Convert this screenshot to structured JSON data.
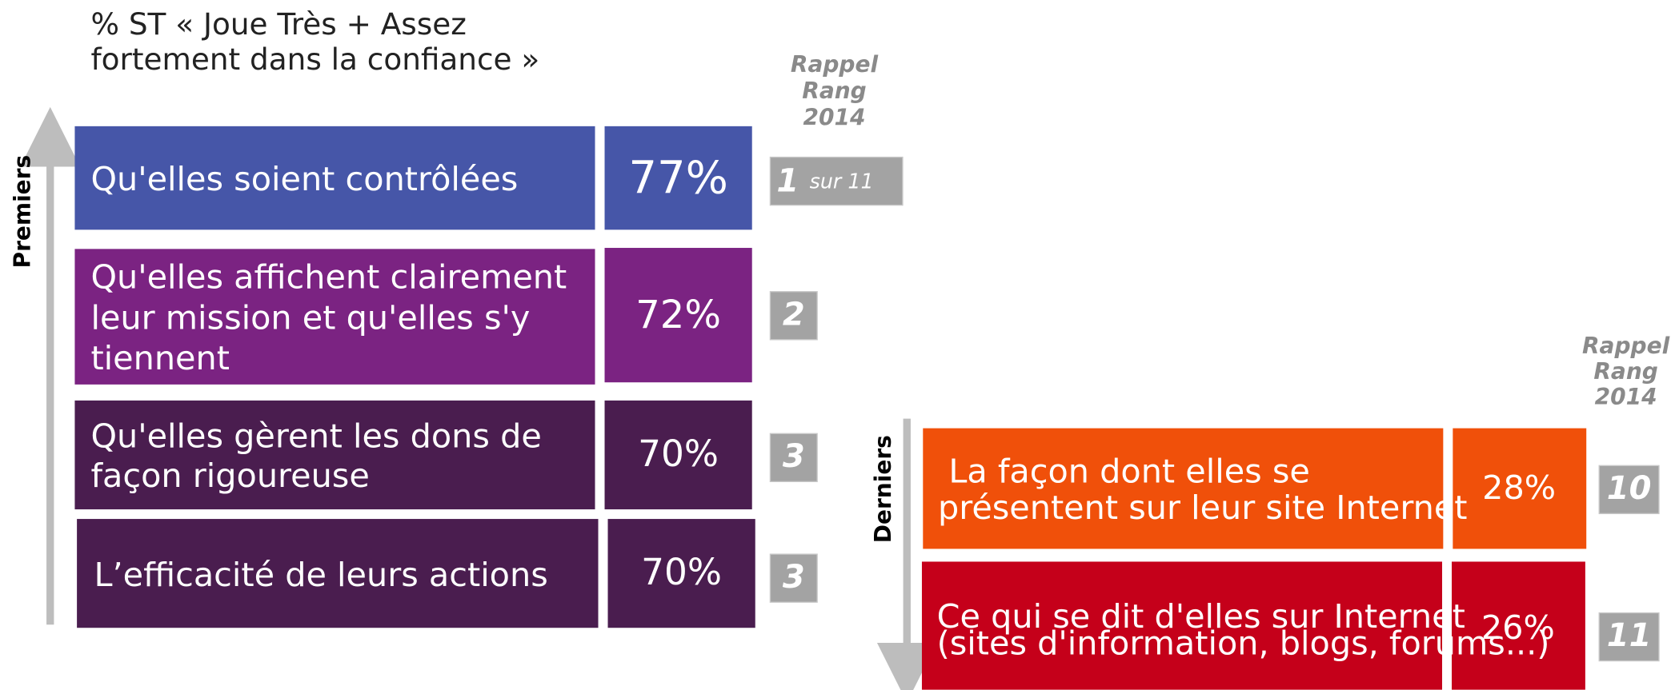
{
  "title": [
    "% ST « Joue Très + Assez",
    "fortement dans la confiance »"
  ],
  "top": {
    "axis_label": "Premiers",
    "rank_header": [
      "Rappel",
      "Rang",
      "2014"
    ],
    "items": [
      {
        "label": [
          "Qu'elles soient contrôlées"
        ],
        "value": "77%",
        "rank": "1",
        "rank_note": "sur 11"
      },
      {
        "label": [
          "Qu'elles affichent clairement",
          "leur mission et qu'elles s'y",
          "tiennent"
        ],
        "value": "72%",
        "rank": "2"
      },
      {
        "label": [
          "Qu'elles gèrent les dons de",
          "façon rigoureuse"
        ],
        "value": "70%",
        "rank": "3"
      },
      {
        "label": [
          "L’efficacité de leurs actions"
        ],
        "value": "70%",
        "rank": "3"
      }
    ]
  },
  "bottom": {
    "axis_label": "Derniers",
    "rank_header": [
      "Rappel",
      "Rang",
      "2014"
    ],
    "items": [
      {
        "label": [
          "La façon dont elles se",
          "présentent sur leur site Internet"
        ],
        "value": "28%",
        "rank": "10"
      },
      {
        "label": [
          "Ce qui se dit d'elles sur Internet"
        ],
        "note": "(sites d'information, blogs, forums...)",
        "value": "26%",
        "rank": "11"
      }
    ]
  }
}
